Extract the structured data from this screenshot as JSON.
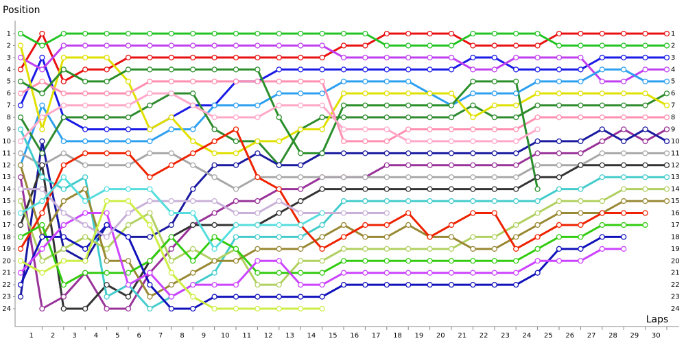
{
  "chart_data": {
    "type": "line",
    "y_label": "Position",
    "x_label": "Laps",
    "x": [
      0,
      1,
      2,
      3,
      4,
      5,
      6,
      7,
      8,
      9,
      10,
      11,
      12,
      13,
      14,
      15,
      16,
      17,
      18,
      19,
      20,
      21,
      22,
      23,
      24,
      25,
      26,
      27,
      28,
      29,
      30
    ],
    "xlim": [
      0,
      30
    ],
    "ylim": [
      24,
      1
    ],
    "xticks": [
      1,
      2,
      3,
      4,
      5,
      6,
      7,
      8,
      9,
      10,
      11,
      12,
      13,
      14,
      15,
      16,
      17,
      18,
      19,
      20,
      21,
      22,
      23,
      24,
      25,
      26,
      27,
      28,
      29,
      30
    ],
    "yticks": [
      1,
      2,
      3,
      4,
      5,
      6,
      7,
      8,
      9,
      10,
      11,
      12,
      13,
      14,
      15,
      16,
      17,
      18,
      19,
      20,
      21,
      22,
      23,
      24
    ],
    "series": [
      {
        "color": "#e81010",
        "values": [
          4,
          1,
          5,
          4,
          4,
          3,
          3,
          3,
          3,
          3,
          3,
          3,
          3,
          3,
          3,
          2,
          2,
          1,
          1,
          1,
          1,
          2,
          2,
          2,
          2,
          1,
          1,
          1,
          1,
          1,
          1
        ]
      },
      {
        "color": "#22c322",
        "values": [
          1,
          2,
          1,
          1,
          1,
          1,
          1,
          1,
          1,
          1,
          1,
          1,
          1,
          1,
          1,
          1,
          1,
          2,
          2,
          2,
          2,
          1,
          1,
          1,
          1,
          2,
          2,
          2,
          2,
          2,
          2
        ]
      },
      {
        "color": "#1a1ae6",
        "values": [
          7,
          3,
          8,
          9,
          9,
          9,
          9,
          8,
          7,
          7,
          5,
          5,
          4,
          4,
          4,
          4,
          4,
          4,
          4,
          4,
          4,
          3,
          3,
          4,
          4,
          4,
          4,
          3,
          3,
          3,
          3
        ]
      },
      {
        "color": "#c040f0",
        "values": [
          3,
          4,
          2,
          2,
          2,
          2,
          2,
          2,
          2,
          2,
          2,
          2,
          2,
          2,
          2,
          3,
          3,
          3,
          3,
          3,
          3,
          4,
          4,
          3,
          3,
          3,
          3,
          5,
          5,
          4,
          4
        ]
      },
      {
        "color": "#2ea0f0",
        "values": [
          12,
          7,
          10,
          10,
          10,
          10,
          10,
          9,
          9,
          7,
          7,
          7,
          6,
          6,
          6,
          5,
          5,
          5,
          5,
          6,
          7,
          6,
          6,
          6,
          5,
          5,
          5,
          4,
          4,
          5,
          5
        ]
      },
      {
        "color": "#2e8b2e",
        "values": [
          8,
          11,
          8,
          8,
          8,
          8,
          7,
          6,
          6,
          9,
          10,
          10,
          12,
          9,
          8,
          8,
          8,
          8,
          8,
          8,
          8,
          7,
          8,
          8,
          7,
          7,
          7,
          7,
          7,
          7,
          6
        ]
      },
      {
        "color": "#e0e000",
        "values": [
          2,
          9,
          3,
          3,
          3,
          5,
          9,
          8,
          10,
          11,
          11,
          10,
          10,
          9,
          9,
          6,
          6,
          6,
          6,
          6,
          6,
          8,
          7,
          7,
          6,
          6,
          6,
          6,
          6,
          6,
          7
        ]
      },
      {
        "color": "#ff8fb0",
        "values": [
          6,
          5,
          6,
          6,
          6,
          6,
          5,
          5,
          5,
          5,
          5,
          5,
          5,
          5,
          5,
          10,
          10,
          10,
          9,
          9,
          9,
          9,
          9,
          9,
          8,
          8,
          8,
          8,
          8,
          8,
          8
        ]
      },
      {
        "color": "#993399",
        "values": [
          13,
          24,
          23,
          21,
          24,
          24,
          21,
          19,
          17,
          16,
          15,
          15,
          14,
          14,
          13,
          13,
          13,
          12,
          12,
          12,
          12,
          12,
          12,
          12,
          11,
          11,
          11,
          10,
          9,
          10,
          9
        ]
      },
      {
        "color": "#1a1aa0",
        "values": [
          23,
          10,
          19,
          20,
          17,
          18,
          18,
          17,
          14,
          12,
          12,
          11,
          12,
          12,
          11,
          11,
          11,
          11,
          11,
          11,
          11,
          11,
          11,
          11,
          10,
          10,
          10,
          9,
          10,
          9,
          10
        ]
      },
      {
        "color": "#a8a8a8",
        "values": [
          11,
          12,
          11,
          12,
          12,
          12,
          11,
          11,
          12,
          13,
          14,
          13,
          13,
          13,
          13,
          13,
          13,
          13,
          13,
          13,
          13,
          13,
          13,
          13,
          12,
          12,
          12,
          11,
          11,
          11,
          11
        ]
      },
      {
        "color": "#333333",
        "values": [
          17,
          12,
          24,
          24,
          22,
          23,
          20,
          18,
          17,
          17,
          17,
          17,
          16,
          15,
          14,
          14,
          14,
          14,
          14,
          14,
          14,
          14,
          14,
          14,
          13,
          13,
          12,
          12,
          12,
          12,
          12
        ]
      },
      {
        "color": "#44cccc",
        "values": [
          9,
          13,
          14,
          13,
          23,
          22,
          24,
          23,
          22,
          21,
          18,
          18,
          18,
          18,
          17,
          15,
          15,
          15,
          15,
          15,
          15,
          15,
          15,
          15,
          15,
          14,
          14,
          13,
          13,
          13,
          13
        ]
      },
      {
        "color": "#b0d060",
        "values": [
          15,
          20,
          19,
          18,
          19,
          17,
          16,
          20,
          19,
          20,
          19,
          22,
          22,
          20,
          20,
          19,
          19,
          19,
          19,
          19,
          19,
          18,
          18,
          17,
          16,
          15,
          15,
          15,
          14,
          14,
          14
        ]
      },
      {
        "color": "#998833",
        "values": [
          12,
          18,
          15,
          14,
          20,
          20,
          23,
          22,
          21,
          20,
          20,
          19,
          19,
          19,
          18,
          17,
          18,
          18,
          17,
          18,
          18,
          19,
          19,
          18,
          17,
          16,
          16,
          16,
          15,
          15,
          15
        ]
      },
      {
        "color": "#ee2200",
        "values": [
          19,
          16,
          12,
          11,
          11,
          11,
          13,
          12,
          11,
          10,
          9,
          13,
          14,
          17,
          19,
          18,
          17,
          17,
          16,
          18,
          17,
          16,
          16,
          19,
          18,
          17,
          17,
          16,
          16,
          16,
          null
        ]
      },
      {
        "color": "#33cc11",
        "values": [
          18,
          17,
          22,
          21,
          21,
          21,
          20,
          18,
          20,
          18,
          19,
          21,
          21,
          21,
          21,
          20,
          20,
          20,
          20,
          20,
          20,
          20,
          20,
          20,
          19,
          18,
          18,
          17,
          17,
          17,
          null
        ]
      },
      {
        "color": "#1111bb",
        "values": [
          22,
          18,
          18,
          19,
          17,
          18,
          22,
          24,
          24,
          23,
          23,
          23,
          23,
          23,
          23,
          22,
          22,
          22,
          22,
          22,
          22,
          22,
          22,
          22,
          21,
          19,
          19,
          18,
          18,
          null,
          null
        ]
      },
      {
        "color": "#cc44ff",
        "values": [
          21,
          19,
          17,
          16,
          16,
          22,
          21,
          23,
          22,
          22,
          22,
          20,
          20,
          22,
          22,
          21,
          21,
          21,
          21,
          21,
          21,
          21,
          21,
          21,
          20,
          20,
          20,
          19,
          19,
          null,
          null
        ]
      },
      {
        "color": "#2a8f2a",
        "values": [
          5,
          6,
          4,
          5,
          5,
          4,
          4,
          4,
          4,
          4,
          4,
          4,
          8,
          11,
          11,
          7,
          7,
          7,
          7,
          7,
          7,
          5,
          5,
          5,
          14,
          null,
          null,
          null,
          null,
          null,
          null
        ]
      },
      {
        "color": "#ffa8c8",
        "values": [
          10,
          8,
          7,
          7,
          7,
          7,
          6,
          6,
          7,
          8,
          8,
          8,
          7,
          7,
          7,
          9,
          9,
          9,
          10,
          10,
          10,
          10,
          10,
          10,
          9,
          null,
          null,
          null,
          null,
          null,
          null
        ]
      },
      {
        "color": "#c8b0d8",
        "values": [
          14,
          14,
          16,
          17,
          18,
          16,
          15,
          15,
          15,
          15,
          16,
          16,
          15,
          16,
          16,
          16,
          16,
          16,
          null,
          null,
          null,
          null,
          null,
          null,
          null,
          null,
          null,
          null,
          null,
          null,
          null
        ]
      },
      {
        "color": "#55dddd",
        "values": [
          16,
          15,
          13,
          15,
          14,
          14,
          14,
          16,
          16,
          19,
          17,
          17,
          17,
          17,
          16,
          null,
          null,
          null,
          null,
          null,
          null,
          null,
          null,
          null,
          null,
          null,
          null,
          null,
          null,
          null,
          null
        ]
      },
      {
        "color": "#ccee44",
        "values": [
          20,
          21,
          20,
          20,
          15,
          15,
          17,
          21,
          23,
          24,
          24,
          24,
          24,
          24,
          24,
          null,
          null,
          null,
          null,
          null,
          null,
          null,
          null,
          null,
          null,
          null,
          null,
          null,
          null,
          null,
          null
        ]
      }
    ]
  }
}
